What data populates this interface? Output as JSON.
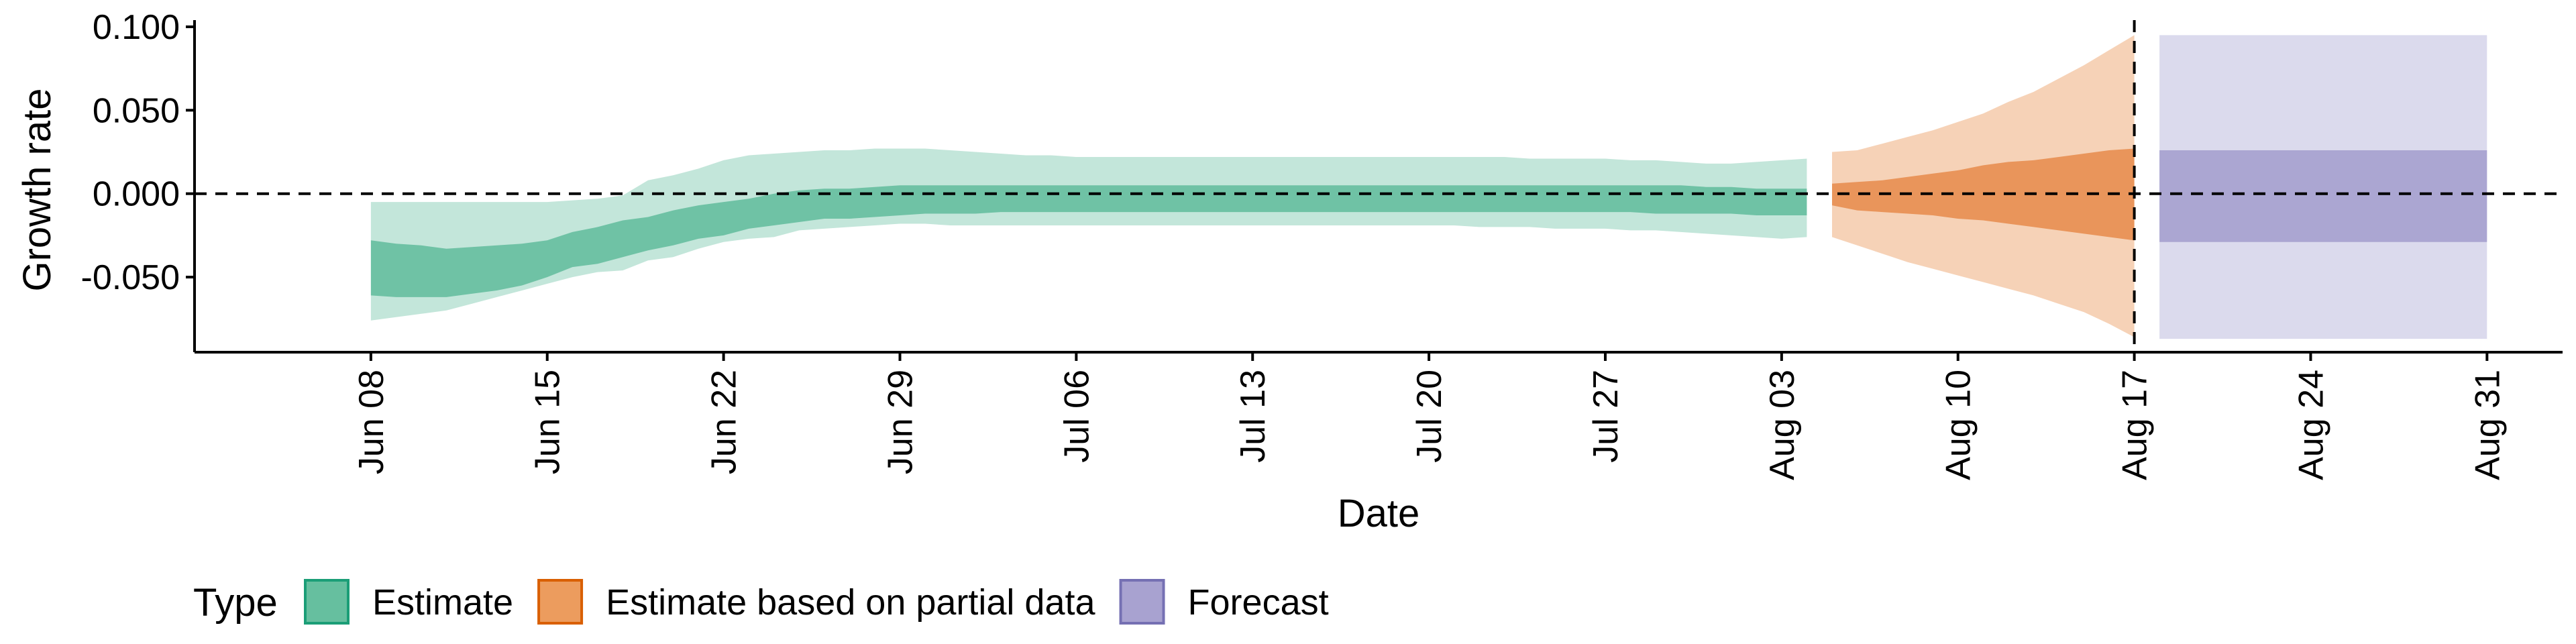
{
  "chart_data": {
    "type": "area",
    "xlabel": "Date",
    "ylabel": "Growth rate",
    "ylim": [
      -0.095,
      0.104
    ],
    "xlim": [
      "2020-06-01",
      "2020-09-03"
    ],
    "y_ticks": [
      -0.05,
      0.0,
      0.05,
      0.1
    ],
    "y_tick_labels": [
      "-0.050",
      "0.000",
      "0.050",
      "0.100"
    ],
    "x_ticks": [
      "2020-06-08",
      "2020-06-15",
      "2020-06-22",
      "2020-06-29",
      "2020-07-06",
      "2020-07-13",
      "2020-07-20",
      "2020-07-27",
      "2020-08-03",
      "2020-08-10",
      "2020-08-17",
      "2020-08-24",
      "2020-08-31"
    ],
    "x_tick_labels": [
      "Jun 08",
      "Jun 15",
      "Jun 22",
      "Jun 29",
      "Jul 06",
      "Jul 13",
      "Jul 20",
      "Jul 27",
      "Aug 03",
      "Aug 10",
      "Aug 17",
      "Aug 24",
      "Aug 31"
    ],
    "hlines": [
      0
    ],
    "vlines": [
      "2020-08-17"
    ],
    "grid": false,
    "legend": {
      "title": "Type",
      "position": "bottom-left",
      "entries": [
        {
          "label": "Estimate",
          "fill": "#66bf9f",
          "stroke": "#1b9e77"
        },
        {
          "label": "Estimate based on partial data",
          "fill": "#ec9c5e",
          "stroke": "#d95f02"
        },
        {
          "label": "Forecast",
          "fill": "#a8a2d0",
          "stroke": "#7570b3"
        }
      ]
    },
    "series": [
      {
        "name": "Estimate",
        "outer_color": "#c3e6da",
        "inner_color": "#6fc2a5",
        "x": [
          "2020-06-08",
          "2020-06-09",
          "2020-06-10",
          "2020-06-11",
          "2020-06-12",
          "2020-06-13",
          "2020-06-14",
          "2020-06-15",
          "2020-06-16",
          "2020-06-17",
          "2020-06-18",
          "2020-06-19",
          "2020-06-20",
          "2020-06-21",
          "2020-06-22",
          "2020-06-23",
          "2020-06-24",
          "2020-06-25",
          "2020-06-26",
          "2020-06-27",
          "2020-06-28",
          "2020-06-29",
          "2020-06-30",
          "2020-07-01",
          "2020-07-02",
          "2020-07-03",
          "2020-07-04",
          "2020-07-05",
          "2020-07-06",
          "2020-07-07",
          "2020-07-08",
          "2020-07-09",
          "2020-07-10",
          "2020-07-11",
          "2020-07-12",
          "2020-07-13",
          "2020-07-14",
          "2020-07-15",
          "2020-07-16",
          "2020-07-17",
          "2020-07-18",
          "2020-07-19",
          "2020-07-20",
          "2020-07-21",
          "2020-07-22",
          "2020-07-23",
          "2020-07-24",
          "2020-07-25",
          "2020-07-26",
          "2020-07-27",
          "2020-07-28",
          "2020-07-29",
          "2020-07-30",
          "2020-07-31",
          "2020-08-01",
          "2020-08-02",
          "2020-08-03",
          "2020-08-04"
        ],
        "lower_90": [
          -0.076,
          -0.074,
          -0.072,
          -0.07,
          -0.066,
          -0.062,
          -0.058,
          -0.054,
          -0.05,
          -0.047,
          -0.046,
          -0.04,
          -0.038,
          -0.033,
          -0.029,
          -0.027,
          -0.026,
          -0.022,
          -0.021,
          -0.02,
          -0.019,
          -0.018,
          -0.018,
          -0.019,
          -0.019,
          -0.019,
          -0.019,
          -0.019,
          -0.019,
          -0.019,
          -0.019,
          -0.019,
          -0.019,
          -0.019,
          -0.019,
          -0.019,
          -0.019,
          -0.019,
          -0.019,
          -0.019,
          -0.019,
          -0.019,
          -0.019,
          -0.019,
          -0.02,
          -0.02,
          -0.02,
          -0.021,
          -0.021,
          -0.021,
          -0.022,
          -0.022,
          -0.023,
          -0.024,
          -0.025,
          -0.026,
          -0.027,
          -0.026
        ],
        "upper_90": [
          -0.005,
          -0.005,
          -0.005,
          -0.005,
          -0.005,
          -0.005,
          -0.005,
          -0.005,
          -0.004,
          -0.003,
          -0.001,
          0.008,
          0.011,
          0.015,
          0.02,
          0.023,
          0.024,
          0.025,
          0.026,
          0.026,
          0.027,
          0.027,
          0.027,
          0.026,
          0.025,
          0.024,
          0.023,
          0.023,
          0.022,
          0.022,
          0.022,
          0.022,
          0.022,
          0.022,
          0.022,
          0.022,
          0.022,
          0.022,
          0.022,
          0.022,
          0.022,
          0.022,
          0.022,
          0.022,
          0.022,
          0.022,
          0.021,
          0.021,
          0.021,
          0.021,
          0.02,
          0.02,
          0.019,
          0.018,
          0.018,
          0.019,
          0.02,
          0.021
        ],
        "lower_50": [
          -0.061,
          -0.062,
          -0.062,
          -0.062,
          -0.06,
          -0.058,
          -0.055,
          -0.05,
          -0.044,
          -0.042,
          -0.038,
          -0.034,
          -0.031,
          -0.027,
          -0.025,
          -0.021,
          -0.019,
          -0.017,
          -0.015,
          -0.015,
          -0.014,
          -0.013,
          -0.012,
          -0.012,
          -0.012,
          -0.011,
          -0.011,
          -0.011,
          -0.011,
          -0.011,
          -0.011,
          -0.011,
          -0.011,
          -0.011,
          -0.011,
          -0.011,
          -0.011,
          -0.011,
          -0.011,
          -0.011,
          -0.011,
          -0.011,
          -0.011,
          -0.011,
          -0.011,
          -0.011,
          -0.011,
          -0.011,
          -0.011,
          -0.011,
          -0.011,
          -0.012,
          -0.012,
          -0.012,
          -0.012,
          -0.013,
          -0.013,
          -0.013
        ],
        "upper_50": [
          -0.028,
          -0.03,
          -0.031,
          -0.033,
          -0.032,
          -0.031,
          -0.03,
          -0.028,
          -0.023,
          -0.02,
          -0.016,
          -0.014,
          -0.01,
          -0.007,
          -0.005,
          -0.003,
          0.0,
          0.002,
          0.003,
          0.003,
          0.004,
          0.005,
          0.005,
          0.005,
          0.005,
          0.005,
          0.005,
          0.005,
          0.005,
          0.005,
          0.005,
          0.005,
          0.005,
          0.005,
          0.005,
          0.005,
          0.005,
          0.005,
          0.005,
          0.005,
          0.005,
          0.005,
          0.005,
          0.005,
          0.005,
          0.005,
          0.005,
          0.005,
          0.005,
          0.005,
          0.005,
          0.005,
          0.005,
          0.004,
          0.004,
          0.003,
          0.003,
          0.003
        ]
      },
      {
        "name": "Estimate based on partial data",
        "outer_color": "#f6d2b7",
        "inner_color": "#e9955b",
        "x": [
          "2020-08-05",
          "2020-08-06",
          "2020-08-07",
          "2020-08-08",
          "2020-08-09",
          "2020-08-10",
          "2020-08-11",
          "2020-08-12",
          "2020-08-13",
          "2020-08-14",
          "2020-08-15",
          "2020-08-16",
          "2020-08-17"
        ],
        "lower_90": [
          -0.026,
          -0.031,
          -0.036,
          -0.041,
          -0.045,
          -0.049,
          -0.053,
          -0.057,
          -0.061,
          -0.066,
          -0.071,
          -0.078,
          -0.086
        ],
        "upper_90": [
          0.025,
          0.026,
          0.03,
          0.034,
          0.038,
          0.043,
          0.048,
          0.055,
          0.061,
          0.069,
          0.077,
          0.086,
          0.095
        ],
        "lower_50": [
          -0.007,
          -0.01,
          -0.011,
          -0.012,
          -0.013,
          -0.015,
          -0.016,
          -0.018,
          -0.02,
          -0.022,
          -0.024,
          -0.026,
          -0.028
        ],
        "upper_50": [
          0.006,
          0.007,
          0.008,
          0.01,
          0.012,
          0.014,
          0.017,
          0.019,
          0.02,
          0.022,
          0.024,
          0.026,
          0.027
        ]
      },
      {
        "name": "Forecast",
        "outer_color": "#dbdaed",
        "inner_color": "#aba6d2",
        "x": [
          "2020-08-18",
          "2020-08-31"
        ],
        "lower_90": [
          -0.087,
          -0.087
        ],
        "upper_90": [
          0.095,
          0.095
        ],
        "lower_50": [
          -0.029,
          -0.029
        ],
        "upper_50": [
          0.026,
          0.026
        ]
      }
    ]
  }
}
